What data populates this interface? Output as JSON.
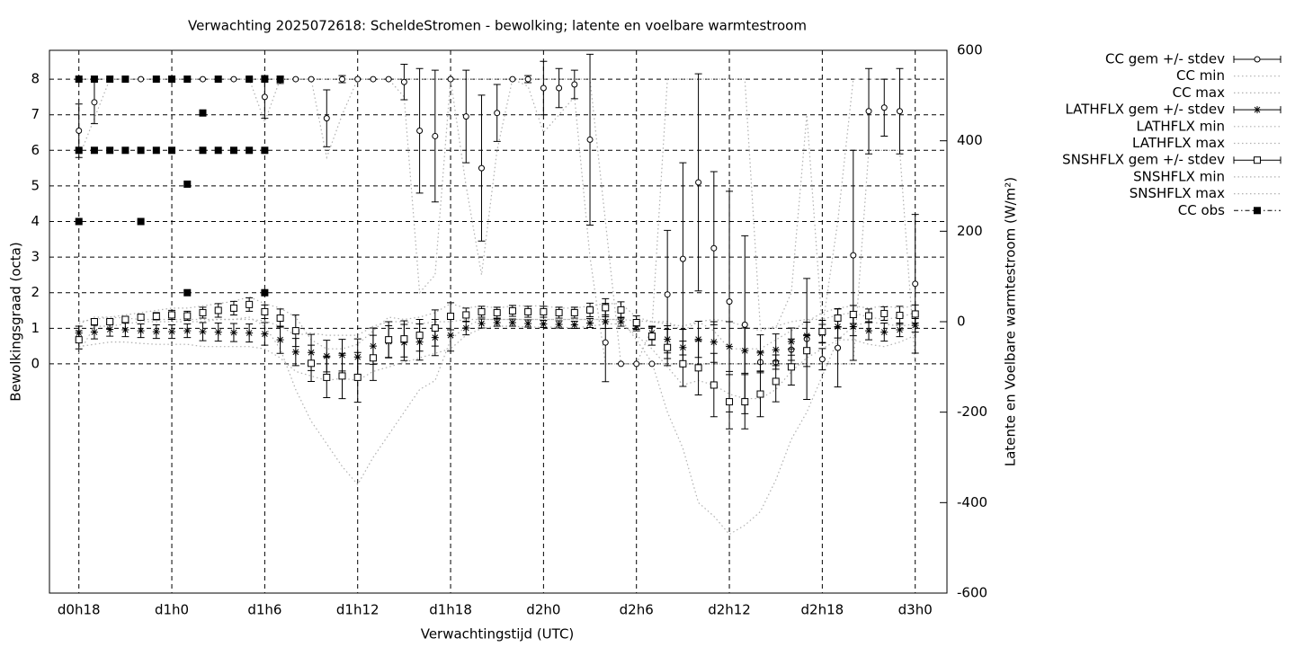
{
  "chart_data": {
    "type": "errorbar",
    "title": "Verwachting 2025072618: ScheldeStromen - bewolking; latente en voelbare warmtestroom",
    "x_label": "Verwachtingstijd (UTC)",
    "y_label": "Bewolkingsgraad (octa)",
    "y2_label": "Latente en Voelbare warmtestroom (W/m²)",
    "x": [
      0,
      1,
      2,
      3,
      4,
      5,
      6,
      7,
      8,
      9,
      10,
      11,
      12,
      13,
      14,
      15,
      16,
      17,
      18,
      19,
      20,
      21,
      22,
      23,
      24,
      25,
      26,
      27,
      28,
      29,
      30,
      31,
      32,
      33,
      34,
      35,
      36,
      37,
      38,
      39,
      40,
      41,
      42,
      43,
      44,
      45,
      46,
      47,
      48,
      49,
      50,
      51,
      52,
      53,
      54
    ],
    "xlim": [
      -1.9,
      56.05
    ],
    "xticks": [
      {
        "value": 0,
        "label": "d0h18"
      },
      {
        "value": 6,
        "label": "d1h0"
      },
      {
        "value": 12,
        "label": "d1h6"
      },
      {
        "value": 18,
        "label": "d1h12"
      },
      {
        "value": 24,
        "label": "d1h18"
      },
      {
        "value": 30,
        "label": "d2h0"
      },
      {
        "value": 36,
        "label": "d2h6"
      },
      {
        "value": 42,
        "label": "d2h12"
      },
      {
        "value": 48,
        "label": "d2h18"
      },
      {
        "value": 54,
        "label": "d3h0"
      }
    ],
    "ylim": [
      -6.44,
      8.81
    ],
    "yticks": [
      0,
      1,
      2,
      3,
      4,
      5,
      6,
      7,
      8
    ],
    "y2lim": [
      -600,
      600
    ],
    "y2ticks": [
      -600,
      -400,
      -200,
      0,
      200,
      400,
      600
    ],
    "grid": true,
    "legend": "outside right",
    "series": [
      {
        "name": "CC gem +/- stdev",
        "kind": "errorbar",
        "marker": "circle",
        "color": "#000000",
        "values": [
          6.55,
          7.35,
          8,
          8,
          8,
          8,
          8,
          8,
          8,
          8,
          8,
          8,
          7.5,
          7.98,
          8,
          8,
          6.9,
          8,
          8,
          8,
          8,
          7.92,
          6.55,
          6.4,
          8,
          6.95,
          5.5,
          7.05,
          8,
          8,
          7.75,
          7.75,
          7.85,
          6.3,
          0.6,
          0,
          0,
          0,
          1.95,
          2.95,
          5.1,
          3.25,
          1.75,
          1.1,
          0.05,
          0.05,
          0.4,
          0.7,
          0.13,
          0.45,
          3.05,
          7.1,
          7.2,
          7.1,
          2.25
        ],
        "errors": [
          0.75,
          0.6,
          0,
          0,
          0,
          0,
          0,
          0,
          0,
          0,
          0,
          0.05,
          0.6,
          0.1,
          0,
          0,
          0.8,
          0.1,
          0,
          0,
          0,
          0.5,
          1.75,
          1.85,
          0,
          1.3,
          2.05,
          0.8,
          0,
          0.1,
          0.75,
          0.55,
          0.4,
          2.4,
          1.1,
          0,
          0,
          0,
          1.8,
          2.7,
          3.05,
          2.15,
          3.1,
          2.5,
          0.3,
          0.2,
          0.3,
          1.7,
          0.3,
          1.1,
          2.95,
          1.2,
          0.8,
          1.2,
          1.95
        ]
      },
      {
        "name": "CC min",
        "kind": "line",
        "color": "#b0b0b0",
        "values": [
          5.8,
          6.9,
          8,
          8,
          8,
          8,
          8,
          8,
          8,
          8,
          8,
          8,
          6.8,
          8,
          8,
          8,
          5.8,
          7,
          8,
          8,
          8,
          7.5,
          2,
          2.5,
          8,
          5,
          2.5,
          6,
          8,
          7.8,
          6.5,
          7,
          7.5,
          3,
          0,
          0,
          0,
          0,
          0,
          0,
          0,
          0,
          0,
          0,
          0,
          0,
          0,
          0,
          0,
          0,
          0,
          6,
          6,
          6,
          0
        ]
      },
      {
        "name": "CC max",
        "kind": "line",
        "color": "#b0b0b0",
        "values": [
          8,
          8,
          8,
          8,
          8,
          8,
          8,
          8,
          8,
          8,
          8,
          8,
          8,
          8,
          8,
          8,
          8,
          8,
          8,
          8,
          8,
          8,
          8,
          8,
          8,
          8,
          8,
          8,
          8,
          8,
          8,
          8,
          8,
          8,
          4,
          0,
          0,
          1,
          8,
          8,
          8,
          8,
          8,
          8,
          1,
          1,
          2,
          7,
          1,
          4,
          8,
          8,
          8,
          8,
          8
        ]
      },
      {
        "name": "LATHFLX gem +/- stdev",
        "kind": "errorbar",
        "marker": "star",
        "axis": "y2",
        "color": "#000000",
        "values": [
          -25,
          -23,
          -17,
          -18,
          -20,
          -22,
          -22,
          -20,
          -22,
          -23,
          -24,
          -25,
          -27,
          -40,
          -67,
          -68,
          -76,
          -74,
          -78,
          -54,
          -44,
          -46,
          -45,
          -35,
          -30,
          -14,
          -4,
          -2,
          -2,
          -4,
          -5,
          -6,
          -7,
          -3,
          0,
          0,
          -10,
          -25,
          -39,
          -57,
          -39,
          -45,
          -55,
          -64,
          -69,
          -62,
          -44,
          -31,
          -26,
          -11,
          -11,
          -20,
          -23,
          -18,
          -8
        ],
        "errors": [
          15,
          15,
          15,
          15,
          15,
          15,
          15,
          15,
          20,
          20,
          20,
          20,
          25,
          30,
          30,
          40,
          35,
          35,
          40,
          40,
          35,
          40,
          40,
          40,
          35,
          15,
          10,
          8,
          8,
          8,
          8,
          8,
          8,
          10,
          15,
          10,
          10,
          15,
          30,
          40,
          40,
          45,
          55,
          50,
          40,
          35,
          30,
          30,
          20,
          25,
          20,
          20,
          20,
          15,
          15
        ]
      },
      {
        "name": "LATHFLX min",
        "kind": "line",
        "axis": "y2",
        "color": "#b0b0b0",
        "values": [
          -55,
          -50,
          -45,
          -45,
          -48,
          -50,
          -50,
          -50,
          -55,
          -55,
          -55,
          -55,
          -60,
          -80,
          -110,
          -120,
          -130,
          -125,
          -130,
          -110,
          -100,
          -90,
          -80,
          -70,
          -60,
          -30,
          -15,
          -10,
          -10,
          -12,
          -12,
          -12,
          -14,
          -10,
          -5,
          -5,
          -30,
          -60,
          -100,
          -140,
          -130,
          -140,
          -160,
          -170,
          -170,
          -150,
          -110,
          -80,
          -60,
          -40,
          -40,
          -50,
          -55,
          -45,
          -30
        ]
      },
      {
        "name": "LATHFLX max",
        "kind": "line",
        "axis": "y2",
        "color": "#b0b0b0",
        "values": [
          0,
          5,
          10,
          8,
          5,
          5,
          5,
          5,
          5,
          5,
          5,
          5,
          2,
          -10,
          -30,
          -25,
          -30,
          -30,
          -30,
          -10,
          0,
          0,
          -5,
          0,
          0,
          5,
          5,
          5,
          5,
          5,
          5,
          5,
          5,
          5,
          5,
          5,
          2,
          0,
          -5,
          -10,
          0,
          5,
          0,
          -10,
          -20,
          -10,
          0,
          5,
          5,
          15,
          20,
          10,
          5,
          10,
          20
        ]
      },
      {
        "name": "SNSHFLX gem +/- stdev",
        "kind": "errorbar",
        "marker": "square",
        "axis": "y2",
        "color": "#000000",
        "values": [
          -40,
          0,
          0,
          5,
          10,
          12,
          15,
          13,
          20,
          25,
          30,
          38,
          22,
          8,
          -20,
          -92,
          -123,
          -120,
          -123,
          -80,
          -40,
          -38,
          -30,
          -14,
          12,
          15,
          22,
          20,
          24,
          22,
          22,
          20,
          20,
          26,
          31,
          26,
          -2,
          -32,
          -57,
          -93,
          -102,
          -140,
          -177,
          -177,
          -160,
          -132,
          -100,
          -64,
          -22,
          8,
          16,
          13,
          18,
          14,
          17
        ],
        "errors": [
          20,
          5,
          5,
          5,
          5,
          8,
          10,
          10,
          12,
          15,
          15,
          15,
          15,
          20,
          35,
          40,
          45,
          50,
          55,
          50,
          40,
          40,
          35,
          40,
          30,
          15,
          12,
          12,
          12,
          12,
          12,
          12,
          12,
          15,
          20,
          18,
          15,
          20,
          40,
          50,
          60,
          70,
          60,
          60,
          50,
          45,
          40,
          35,
          25,
          20,
          20,
          15,
          15,
          20,
          20
        ]
      },
      {
        "name": "SNSHFLX min",
        "kind": "line",
        "axis": "y2",
        "color": "#b0b0b0",
        "values": [
          -70,
          -10,
          -10,
          -5,
          0,
          0,
          0,
          0,
          0,
          5,
          5,
          10,
          -10,
          -60,
          -150,
          -220,
          -270,
          -320,
          -360,
          -300,
          -250,
          -200,
          -150,
          -130,
          -40,
          -10,
          5,
          5,
          5,
          5,
          5,
          5,
          5,
          5,
          5,
          5,
          -40,
          -90,
          -200,
          -280,
          -400,
          -430,
          -470,
          -450,
          -420,
          -350,
          -260,
          -200,
          -120,
          -40,
          -10,
          0,
          -5,
          -10,
          -5
        ]
      },
      {
        "name": "SNSHFLX max",
        "kind": "line",
        "axis": "y2",
        "color": "#b0b0b0",
        "values": [
          -5,
          10,
          10,
          15,
          20,
          25,
          30,
          30,
          35,
          40,
          45,
          55,
          40,
          30,
          10,
          -40,
          -60,
          -60,
          -50,
          -20,
          10,
          5,
          10,
          20,
          40,
          30,
          35,
          30,
          35,
          35,
          35,
          30,
          30,
          35,
          40,
          40,
          10,
          0,
          0,
          -20,
          0,
          -20,
          -60,
          -60,
          -60,
          -40,
          -20,
          0,
          20,
          30,
          35,
          30,
          35,
          30,
          35
        ]
      },
      {
        "name": "CC obs",
        "kind": "points",
        "marker": "filled-square",
        "color": "#000000",
        "x": [
          0,
          0,
          0,
          1,
          1,
          2,
          2,
          3,
          3,
          4,
          4,
          5,
          5,
          6,
          6,
          7,
          7,
          7,
          8,
          8,
          9,
          9,
          10,
          11,
          11,
          12,
          12,
          12,
          13
        ],
        "values": [
          8,
          6,
          4,
          8,
          6,
          8,
          6,
          8,
          6,
          6,
          4,
          8,
          6,
          8,
          6,
          8,
          5.05,
          2,
          7.05,
          6,
          8,
          6,
          6,
          8,
          6,
          8,
          6,
          2,
          8
        ]
      }
    ]
  }
}
